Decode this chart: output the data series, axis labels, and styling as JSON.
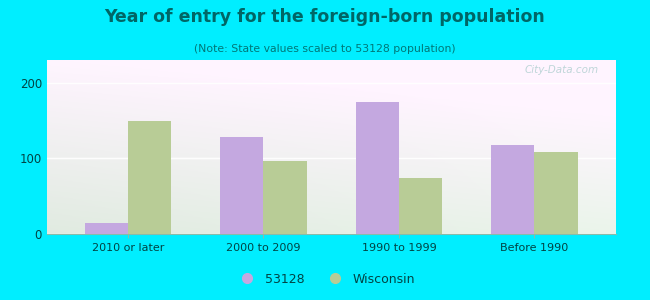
{
  "title": "Year of entry for the foreign-born population",
  "subtitle": "(Note: State values scaled to 53128 population)",
  "categories": [
    "2010 or later",
    "2000 to 2009",
    "1990 to 1999",
    "Before 1990"
  ],
  "values_53128": [
    15,
    128,
    175,
    118
  ],
  "values_wisconsin": [
    150,
    97,
    74,
    108
  ],
  "color_53128": "#c4a8e0",
  "color_wisconsin": "#b8cc96",
  "ylim": [
    0,
    230
  ],
  "yticks": [
    0,
    100,
    200
  ],
  "outer_bg": "#00eeff",
  "bar_width": 0.32,
  "legend_53128": "53128",
  "legend_wisconsin": "Wisconsin",
  "watermark": "City-Data.com",
  "title_color": "#006666",
  "subtitle_color": "#007777",
  "tick_color": "#004444",
  "grid_color": "#ccddcc"
}
